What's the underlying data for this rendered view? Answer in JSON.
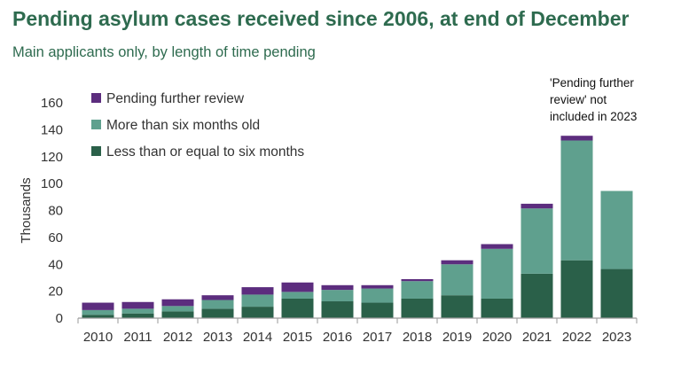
{
  "header": {
    "title": "Pending asylum cases received since 2006, at end of December",
    "subtitle": "Main applicants only, by length of time pending"
  },
  "chart_data": {
    "type": "bar",
    "stacked": true,
    "categories": [
      "2010",
      "2011",
      "2012",
      "2013",
      "2014",
      "2015",
      "2016",
      "2017",
      "2018",
      "2019",
      "2020",
      "2021",
      "2022",
      "2023"
    ],
    "series": [
      {
        "name": "Less than or equal to six months",
        "color": "#2a6049",
        "values": [
          2.5,
          3.5,
          5,
          7,
          8.5,
          14.5,
          12.5,
          11.5,
          14.5,
          17,
          14.5,
          33,
          43,
          36.5
        ]
      },
      {
        "name": "More than six months old",
        "color": "#5fa08e",
        "values": [
          3.5,
          3.5,
          4,
          6.5,
          9,
          5,
          8.5,
          10.5,
          13,
          23,
          37,
          48.5,
          89,
          58
        ]
      },
      {
        "name": "Pending further review",
        "color": "#5c2d7e",
        "values": [
          5.5,
          5,
          5,
          3.5,
          5.5,
          7,
          3.5,
          2.5,
          1.5,
          3,
          3.5,
          3.5,
          3.5,
          0
        ]
      }
    ],
    "legend": [
      "Pending further review",
      "More than six months old",
      "Less than or equal to six months"
    ],
    "ylabel": "Thousands",
    "yticks": [
      0,
      20,
      40,
      60,
      80,
      100,
      120,
      140,
      160
    ],
    "ylim": [
      0,
      160
    ],
    "annotation": {
      "lines": [
        "'Pending further",
        "review' not",
        "included in 2023"
      ]
    }
  }
}
